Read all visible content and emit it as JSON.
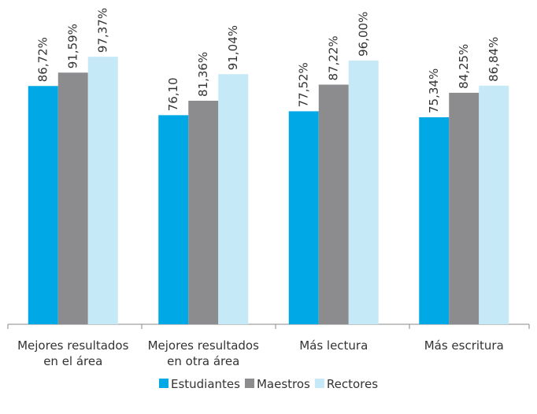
{
  "chart_data": {
    "type": "bar",
    "categories": [
      [
        "Mejores resultados",
        "en el área"
      ],
      [
        "Mejores resultados",
        "en otra área"
      ],
      [
        "Más lectura"
      ],
      [
        "Más escritura"
      ]
    ],
    "series": [
      {
        "name": "Estudiantes",
        "color": "#00a9e6",
        "values": [
          86.72,
          76.1,
          77.52,
          75.34
        ],
        "value_labels": [
          "86,72%",
          "76,10",
          "77,52%",
          "75,34%"
        ]
      },
      {
        "name": "Maestros",
        "color": "#8c8c8e",
        "values": [
          91.59,
          81.36,
          87.22,
          84.25
        ],
        "value_labels": [
          "91,59%",
          "81,36%",
          "87,22%",
          "84,25%"
        ]
      },
      {
        "name": "Rectores",
        "color": "#c6e9f8",
        "values": [
          97.37,
          91.04,
          96.0,
          86.84
        ],
        "value_labels": [
          "97,37%",
          "91,04%",
          "96,00%",
          "86,84%"
        ]
      }
    ],
    "ylim": [
      0,
      110
    ],
    "legend": "bottom"
  }
}
